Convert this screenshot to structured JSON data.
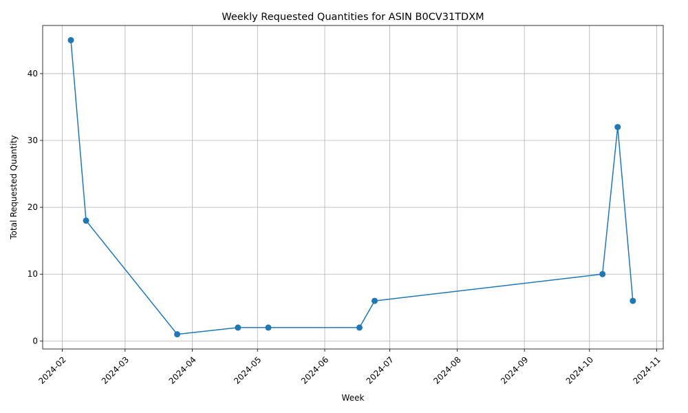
{
  "chart_data": {
    "type": "line",
    "title": "Weekly Requested Quantities for ASIN B0CV31TDXM",
    "xlabel": "Week",
    "ylabel": "Total Requested Quantity",
    "x_tick_labels": [
      "2024-02",
      "2024-03",
      "2024-04",
      "2024-05",
      "2024-06",
      "2024-07",
      "2024-08",
      "2024-09",
      "2024-10",
      "2024-11"
    ],
    "x_ticks": [
      "2024-02-01",
      "2024-03-01",
      "2024-04-01",
      "2024-05-01",
      "2024-06-01",
      "2024-07-01",
      "2024-08-01",
      "2024-09-01",
      "2024-10-01",
      "2024-11-01"
    ],
    "y_ticks": [
      0,
      10,
      20,
      30,
      40
    ],
    "xlim": [
      "2024-01-23",
      "2024-11-04"
    ],
    "ylim": [
      -1.2,
      47.2
    ],
    "grid": true,
    "color": "#1f77b4",
    "marker": "circle",
    "series": [
      {
        "x": [
          "2024-02-05",
          "2024-02-12",
          "2024-03-25",
          "2024-04-22",
          "2024-05-06",
          "2024-06-17",
          "2024-06-24",
          "2024-10-07",
          "2024-10-14",
          "2024-10-21"
        ],
        "values": [
          45,
          18,
          1,
          2,
          2,
          2,
          6,
          10,
          32,
          6
        ]
      }
    ]
  }
}
